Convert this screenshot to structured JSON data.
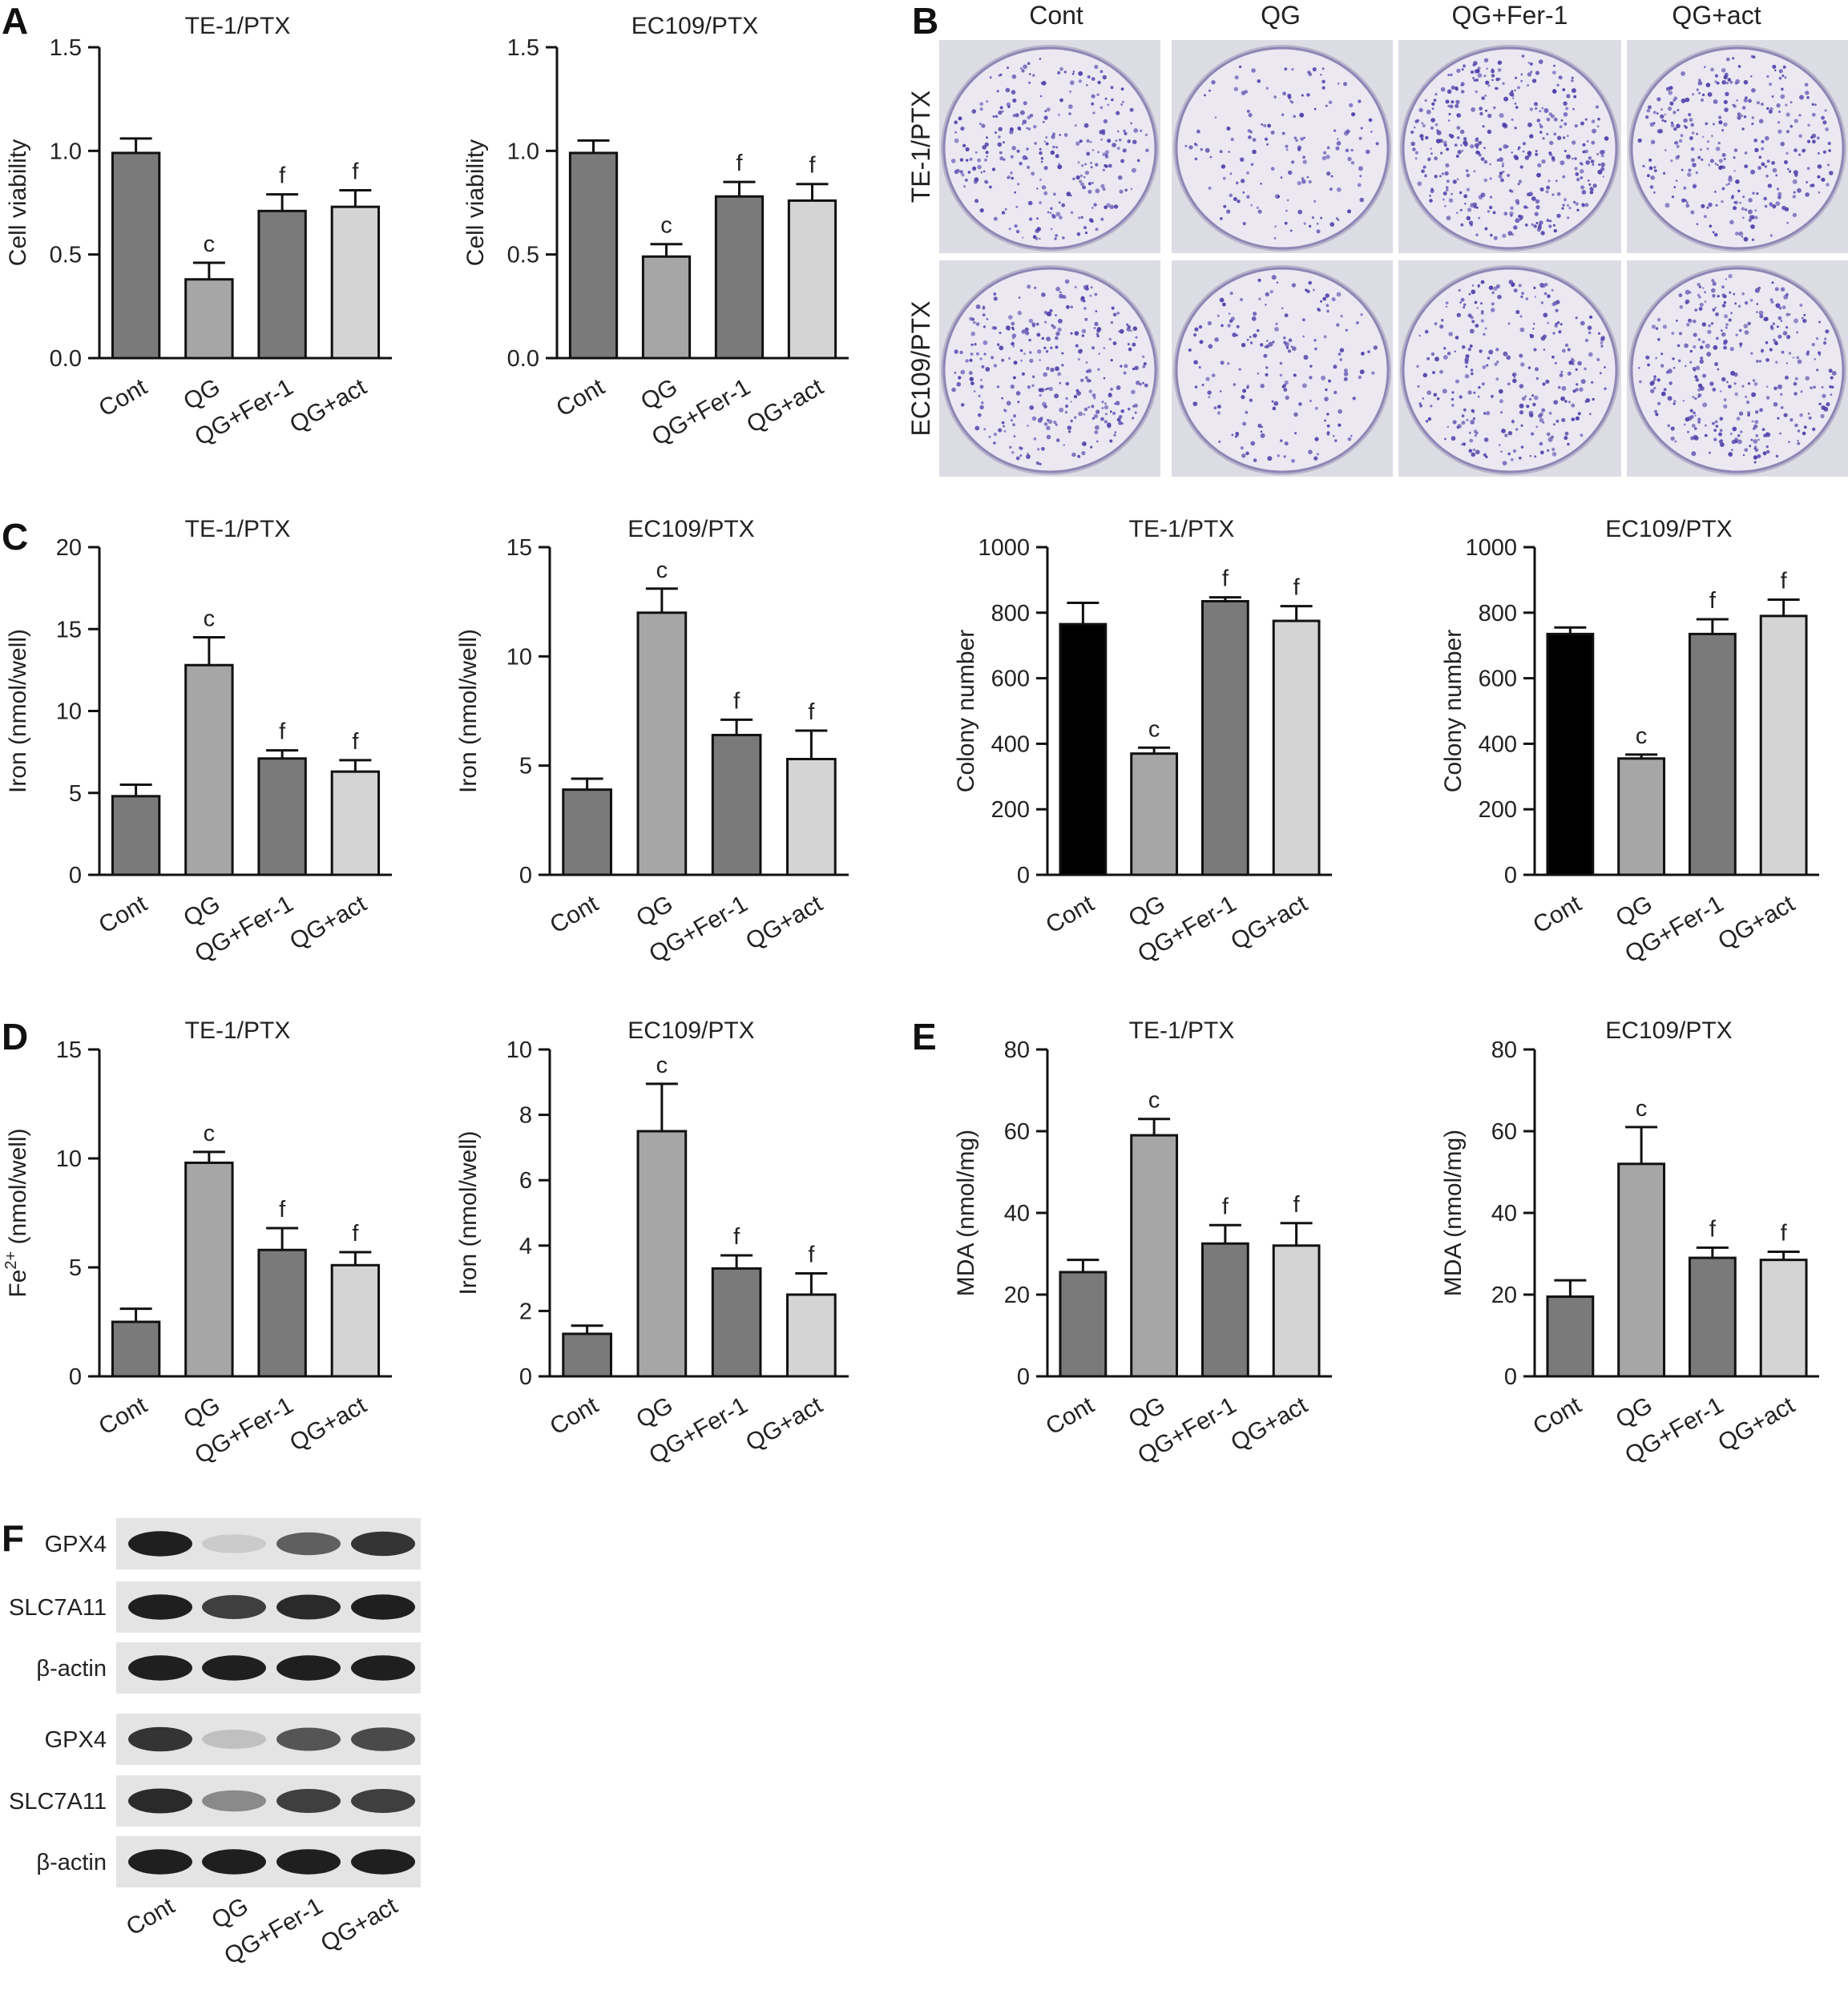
{
  "panels": {
    "A": "A",
    "B": "B",
    "C": "C",
    "D": "D",
    "E": "E",
    "F": "F"
  },
  "bar_colors": [
    "#7a7a7a",
    "#a6a6a6",
    "#7a7a7a",
    "#d4d4d4"
  ],
  "colony_first_color": "#000000",
  "colony_images": {
    "columns": [
      "Cont",
      "QG",
      "QG+Fer-1",
      "QG+act"
    ],
    "rows": [
      "TE-1/PTX",
      "EC109/PTX"
    ],
    "plate_color": "#ece8f2",
    "colony_color": "#4b3fa8"
  },
  "western_blot": {
    "blocks": [
      [
        "GPX4",
        "SLC7A11",
        "β-actin"
      ],
      [
        "GPX4",
        "SLC7A11",
        "β-actin"
      ]
    ],
    "lanes": [
      "Cont",
      "QG",
      "QG+Fer-1",
      "QG+act"
    ],
    "band_intensity": [
      [
        0.95,
        0.15,
        0.65,
        0.85
      ],
      [
        0.95,
        0.8,
        0.9,
        0.95
      ],
      [
        0.95,
        0.95,
        0.95,
        0.95
      ],
      [
        0.85,
        0.2,
        0.7,
        0.75
      ],
      [
        0.9,
        0.45,
        0.8,
        0.8
      ],
      [
        0.95,
        0.95,
        0.95,
        0.95
      ]
    ]
  },
  "chart_data": [
    {
      "id": "A1",
      "panel": "A",
      "type": "bar",
      "title": "TE-1/PTX",
      "ylabel": "Cell viability",
      "categories": [
        "Cont",
        "QG",
        "QG+Fer-1",
        "QG+act"
      ],
      "values": [
        0.99,
        0.38,
        0.71,
        0.73
      ],
      "errors": [
        0.07,
        0.08,
        0.08,
        0.08
      ],
      "labels": [
        "",
        "c",
        "f",
        "f"
      ],
      "ylim": [
        0,
        1.5
      ],
      "yticks": [
        0,
        0.5,
        1,
        1.5
      ],
      "ytick_labels": [
        "0.0",
        "0.5",
        "1.0",
        "1.5"
      ]
    },
    {
      "id": "A2",
      "panel": "A",
      "type": "bar",
      "title": "EC109/PTX",
      "ylabel": "Cell viability",
      "categories": [
        "Cont",
        "QG",
        "QG+Fer-1",
        "QG+act"
      ],
      "values": [
        0.99,
        0.49,
        0.78,
        0.76
      ],
      "errors": [
        0.06,
        0.06,
        0.07,
        0.08
      ],
      "labels": [
        "",
        "c",
        "f",
        "f"
      ],
      "ylim": [
        0,
        1.5
      ],
      "yticks": [
        0,
        0.5,
        1,
        1.5
      ],
      "ytick_labels": [
        "0.0",
        "0.5",
        "1.0",
        "1.5"
      ]
    },
    {
      "id": "C1",
      "panel": "C",
      "type": "bar",
      "title": "TE-1/PTX",
      "ylabel": "Iron (nmol/well)",
      "categories": [
        "Cont",
        "QG",
        "QG+Fer-1",
        "QG+act"
      ],
      "values": [
        4.8,
        12.8,
        7.1,
        6.3
      ],
      "errors": [
        0.7,
        1.7,
        0.5,
        0.7
      ],
      "labels": [
        "",
        "c",
        "f",
        "f"
      ],
      "ylim": [
        0,
        20
      ],
      "yticks": [
        0,
        5,
        10,
        15,
        20
      ],
      "ytick_labels": [
        "0",
        "5",
        "10",
        "15",
        "20"
      ]
    },
    {
      "id": "C2",
      "panel": "C",
      "type": "bar",
      "title": "EC109/PTX",
      "ylabel": "Iron (nmol/well)",
      "categories": [
        "Cont",
        "QG",
        "QG+Fer-1",
        "QG+act"
      ],
      "values": [
        3.9,
        12.0,
        6.4,
        5.3
      ],
      "errors": [
        0.5,
        1.1,
        0.7,
        1.3
      ],
      "labels": [
        "",
        "c",
        "f",
        "f"
      ],
      "ylim": [
        0,
        15
      ],
      "yticks": [
        0,
        5,
        10,
        15
      ],
      "ytick_labels": [
        "0",
        "5",
        "10",
        "15"
      ]
    },
    {
      "id": "B1",
      "panel": "B",
      "type": "bar",
      "title": "TE-1/PTX",
      "ylabel": "Colony number",
      "categories": [
        "Cont",
        "QG",
        "QG+Fer-1",
        "QG+act"
      ],
      "values": [
        765,
        370,
        835,
        775
      ],
      "errors": [
        65,
        18,
        12,
        45
      ],
      "labels": [
        "",
        "c",
        "f",
        "f"
      ],
      "ylim": [
        0,
        1000
      ],
      "yticks": [
        0,
        200,
        400,
        600,
        800,
        1000
      ],
      "ytick_labels": [
        "0",
        "200",
        "400",
        "600",
        "800",
        "1000"
      ]
    },
    {
      "id": "B2",
      "panel": "B",
      "type": "bar",
      "title": "EC109/PTX",
      "ylabel": "Colony number",
      "categories": [
        "Cont",
        "QG",
        "QG+Fer-1",
        "QG+act"
      ],
      "values": [
        735,
        355,
        735,
        790
      ],
      "errors": [
        20,
        12,
        45,
        50
      ],
      "labels": [
        "",
        "c",
        "f",
        "f"
      ],
      "ylim": [
        0,
        1000
      ],
      "yticks": [
        0,
        200,
        400,
        600,
        800,
        1000
      ],
      "ytick_labels": [
        "0",
        "200",
        "400",
        "600",
        "800",
        "1000"
      ]
    },
    {
      "id": "D1",
      "panel": "D",
      "type": "bar",
      "title": "TE-1/PTX",
      "ylabel": "(nmol/well)",
      "ylabel_prefix": "Fe",
      "ylabel_sup": "2+",
      "categories": [
        "Cont",
        "QG",
        "QG+Fer-1",
        "QG+act"
      ],
      "values": [
        2.5,
        9.8,
        5.8,
        5.1
      ],
      "errors": [
        0.6,
        0.5,
        1.0,
        0.6
      ],
      "labels": [
        "",
        "c",
        "f",
        "f"
      ],
      "ylim": [
        0,
        15
      ],
      "yticks": [
        0,
        5,
        10,
        15
      ],
      "ytick_labels": [
        "0",
        "5",
        "10",
        "15"
      ]
    },
    {
      "id": "D2",
      "panel": "D",
      "type": "bar",
      "title": "EC109/PTX",
      "ylabel": "Iron (nmol/well)",
      "categories": [
        "Cont",
        "QG",
        "QG+Fer-1",
        "QG+act"
      ],
      "values": [
        1.3,
        7.5,
        3.3,
        2.5
      ],
      "errors": [
        0.25,
        1.45,
        0.4,
        0.65
      ],
      "labels": [
        "",
        "c",
        "f",
        "f"
      ],
      "ylim": [
        0,
        10
      ],
      "yticks": [
        0,
        2,
        4,
        6,
        8,
        10
      ],
      "ytick_labels": [
        "0",
        "2",
        "4",
        "6",
        "8",
        "10"
      ]
    },
    {
      "id": "E1",
      "panel": "E",
      "type": "bar",
      "title": "TE-1/PTX",
      "ylabel": "MDA (nmol/mg)",
      "categories": [
        "Cont",
        "QG",
        "QG+Fer-1",
        "QG+act"
      ],
      "values": [
        25.5,
        59,
        32.5,
        32
      ],
      "errors": [
        3,
        4,
        4.5,
        5.5
      ],
      "labels": [
        "",
        "c",
        "f",
        "f"
      ],
      "ylim": [
        0,
        80
      ],
      "yticks": [
        0,
        20,
        40,
        60,
        80
      ],
      "ytick_labels": [
        "0",
        "20",
        "40",
        "60",
        "80"
      ]
    },
    {
      "id": "E2",
      "panel": "E",
      "type": "bar",
      "title": "EC109/PTX",
      "ylabel": "MDA (nmol/mg)",
      "categories": [
        "Cont",
        "QG",
        "QG+Fer-1",
        "QG+act"
      ],
      "values": [
        19.5,
        52,
        29,
        28.5
      ],
      "errors": [
        4,
        9,
        2.5,
        2
      ],
      "labels": [
        "",
        "c",
        "f",
        "f"
      ],
      "ylim": [
        0,
        80
      ],
      "yticks": [
        0,
        20,
        40,
        60,
        80
      ],
      "ytick_labels": [
        "0",
        "20",
        "40",
        "60",
        "80"
      ]
    }
  ]
}
